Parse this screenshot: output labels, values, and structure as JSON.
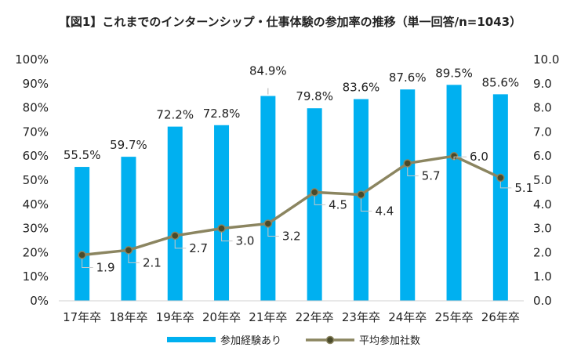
{
  "title": "【図1】これまでのインターンシップ・仕事体験の参加率の推移（単一回答/n=1043）",
  "chart_data": {
    "type": "bar",
    "categories": [
      "17年卒",
      "18年卒",
      "19年卒",
      "20年卒",
      "21年卒",
      "22年卒",
      "23年卒",
      "24年卒",
      "25年卒",
      "26年卒"
    ],
    "series": [
      {
        "name": "参加経験あり",
        "type": "bar",
        "axis": "left",
        "values": [
          55.5,
          59.7,
          72.2,
          72.8,
          84.9,
          79.8,
          83.6,
          87.6,
          89.5,
          85.6
        ],
        "labels": [
          "55.5%",
          "59.7%",
          "72.2%",
          "72.8%",
          "84.9%",
          "79.8%",
          "83.6%",
          "87.6%",
          "89.5%",
          "85.6%"
        ],
        "color": "#00B0F0"
      },
      {
        "name": "平均参加社数",
        "type": "line",
        "axis": "right",
        "values": [
          1.9,
          2.1,
          2.7,
          3.0,
          3.2,
          4.5,
          4.4,
          5.7,
          6.0,
          5.1
        ],
        "labels": [
          "1.9",
          "2.1",
          "2.7",
          "3.0",
          "3.2",
          "4.5",
          "4.4",
          "5.7",
          "6.0",
          "5.1"
        ],
        "color": "#8B8560",
        "marker_color": "#4A4A2A"
      }
    ],
    "y_left": {
      "range": [
        0,
        100
      ],
      "ticks": [
        "0%",
        "10%",
        "20%",
        "30%",
        "40%",
        "50%",
        "60%",
        "70%",
        "80%",
        "90%",
        "100%"
      ]
    },
    "y_right": {
      "range": [
        0,
        10
      ],
      "ticks": [
        "0.0",
        "1.0",
        "2.0",
        "3.0",
        "4.0",
        "5.0",
        "6.0",
        "7.0",
        "8.0",
        "9.0",
        "10.0"
      ]
    },
    "grid": false,
    "legend_position": "bottom"
  }
}
